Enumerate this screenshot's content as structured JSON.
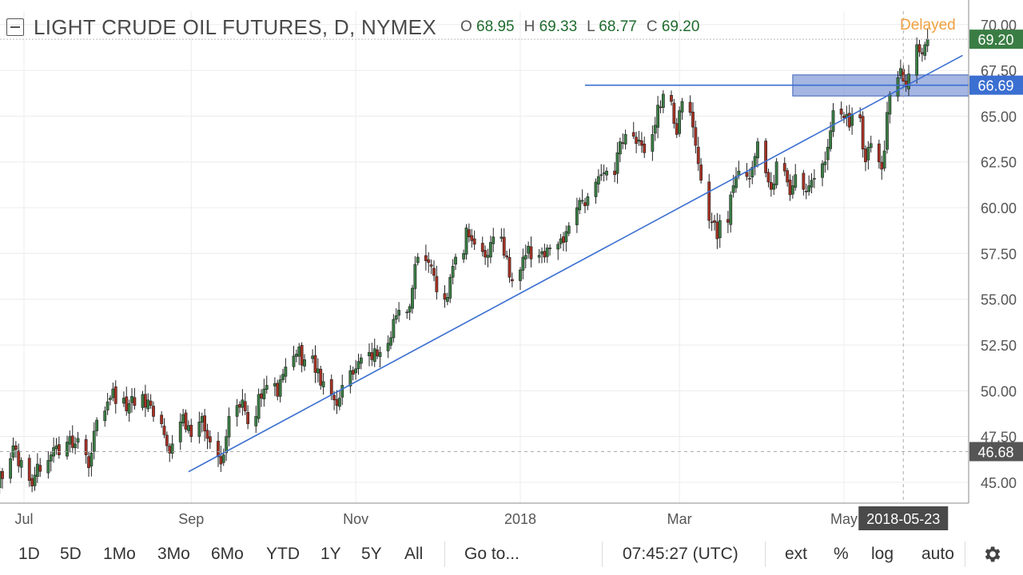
{
  "header": {
    "title": "LIGHT CRUDE OIL FUTURES, D, NYMEX",
    "ohlc": [
      {
        "label": "O",
        "value": "68.95"
      },
      {
        "label": "H",
        "value": "69.33"
      },
      {
        "label": "L",
        "value": "68.77"
      },
      {
        "label": "C",
        "value": "69.20"
      }
    ],
    "delayed": "Delayed"
  },
  "colors": {
    "up": "#3a7d44",
    "down": "#a63224",
    "grid": "#ececec",
    "trendline": "#3b6fd1",
    "zone_fill": "#7f97d6",
    "last_price_badge": "#3a7d44",
    "level_badge": "#3b6fd1",
    "crosshair_badge": "#555555",
    "date_badge": "#4a4a4a"
  },
  "chart_data": {
    "type": "candlestick",
    "ylim": [
      44,
      70.4
    ],
    "y_ticks": [
      "45.00",
      "47.50",
      "50.00",
      "52.50",
      "55.00",
      "57.50",
      "60.00",
      "62.50",
      "65.00",
      "67.50",
      "70.00"
    ],
    "x_ticks": [
      "Jul",
      "Sep",
      "Nov",
      "2018",
      "Mar",
      "May"
    ],
    "x_tick_dates": [
      "2017-07-01",
      "2017-09-01",
      "2017-11-01",
      "2018-01-01",
      "2018-03-01",
      "2018-05-01"
    ],
    "x_range": [
      "2017-06-21",
      "2018-06-14"
    ],
    "close": [
      44.8,
      45.6,
      45.2,
      46.3,
      47.0,
      46.8,
      45.9,
      46.2,
      45.1,
      44.8,
      45.4,
      46.0,
      45.6,
      46.2,
      46.5,
      46.9,
      47.0,
      46.5,
      47.2,
      47.5,
      46.9,
      47.1,
      47.4,
      46.5,
      45.8,
      46.6,
      47.8,
      48.4,
      48.9,
      49.4,
      49.6,
      50.1,
      49.3,
      49.6,
      48.9,
      49.3,
      49.7,
      49.2,
      49.8,
      49.1,
      49.5,
      49.2,
      48.6,
      48.2,
      47.6,
      47.0,
      46.6,
      47.1,
      48.3,
      48.7,
      47.9,
      48.1,
      47.5,
      48.3,
      48.6,
      47.8,
      47.4,
      47.2,
      46.4,
      46.0,
      46.5,
      47.5,
      48.6,
      49.2,
      49.1,
      49.5,
      48.9,
      48.2,
      48.6,
      49.8,
      49.6,
      50.1,
      50.3,
      50.4,
      49.7,
      50.6,
      50.9,
      51.3,
      51.9,
      52.0,
      52.4,
      51.4,
      51.7,
      51.9,
      51.0,
      51.2,
      50.3,
      50.5,
      49.8,
      49.5,
      49.2,
      49.6,
      50.3,
      51.1,
      50.9,
      51.2,
      51.6,
      51.8,
      52.1,
      51.7,
      52.3,
      51.9,
      52.1,
      52.6,
      52.9,
      53.9,
      54.1,
      54.4,
      54.3,
      54.6,
      55.6,
      56.9,
      57.3,
      57.1,
      57.0,
      56.8,
      56.3,
      55.4,
      55.0,
      55.1,
      56.2,
      56.8,
      57.3,
      57.5,
      58.9,
      58.4,
      58.2,
      58.0,
      57.6,
      57.3,
      57.4,
      58.1,
      58.4,
      58.4,
      57.4,
      57.3,
      56.2,
      56.0,
      56.6,
      57.3,
      57.4,
      57.9,
      57.2,
      57.4,
      57.6,
      57.3,
      57.8,
      57.8,
      58.0,
      58.3,
      58.1,
      58.7,
      59.0,
      60.0,
      60.4,
      60.4,
      60.1,
      60.6,
      61.4,
      61.7,
      61.8,
      61.9,
      62.0,
      61.8,
      63.0,
      63.6,
      63.5,
      64.0,
      63.9,
      63.5,
      63.7,
      63.4,
      63.0,
      64.0,
      64.5,
      65.6,
      65.5,
      66.2,
      65.8,
      64.6,
      64.0,
      65.3,
      65.8,
      65.2,
      64.4,
      63.4,
      62.4,
      61.5,
      59.3,
      59.2,
      59.2,
      58.3,
      59.3,
      59.2,
      60.7,
      61.2,
      61.7,
      62.0,
      61.7,
      61.6,
      62.2,
      62.8,
      63.6,
      61.9,
      61.4,
      61.0,
      61.3,
      62.5,
      62.0,
      61.4,
      60.7,
      61.2,
      61.8,
      61.0,
      60.9,
      61.2,
      61.5,
      61.6,
      62.4,
      62.5,
      63.3,
      64.2,
      65.3,
      65.1,
      64.9,
      65.1,
      64.4,
      65.1,
      64.9,
      63.2,
      62.5,
      63.3,
      63.5,
      62.5,
      62.1,
      63.1,
      65.2,
      66.2,
      67.1,
      67.6,
      66.9,
      66.6,
      67.3,
      68.9,
      68.5,
      68.4,
      68.9,
      69.2
    ],
    "overlays": {
      "support_trendline": {
        "from": {
          "date": "2017-08-31",
          "price": 45.58
        },
        "to": {
          "date": "2018-06-14",
          "price": 68.32
        }
      },
      "resistance_line": {
        "from": {
          "date": "2018-01-25",
          "price": 66.69
        },
        "to": {
          "date": "2018-06-14",
          "price": 66.69
        }
      },
      "zone": {
        "from": "2018-04-12",
        "price_low": 66.1,
        "price_high": 67.25
      }
    },
    "price_badges": [
      {
        "label": "69.20",
        "price": 69.2,
        "kind": "last_price"
      },
      {
        "label": "66.69",
        "price": 66.69,
        "kind": "level"
      },
      {
        "label": "46.68",
        "price": 46.68,
        "kind": "crosshair"
      }
    ],
    "crosshair": {
      "date": "2018-05-23",
      "price": 46.68
    },
    "date_badge": "2018-05-23"
  },
  "toolbar": {
    "ranges": [
      "1D",
      "5D",
      "1Mo",
      "3Mo",
      "6Mo",
      "YTD",
      "1Y",
      "5Y",
      "All"
    ],
    "goto": "Go to...",
    "time": "07:45:27 (UTC)",
    "ext": "ext",
    "percent": "%",
    "log": "log",
    "auto": "auto",
    "settings_icon": "gear-icon"
  }
}
